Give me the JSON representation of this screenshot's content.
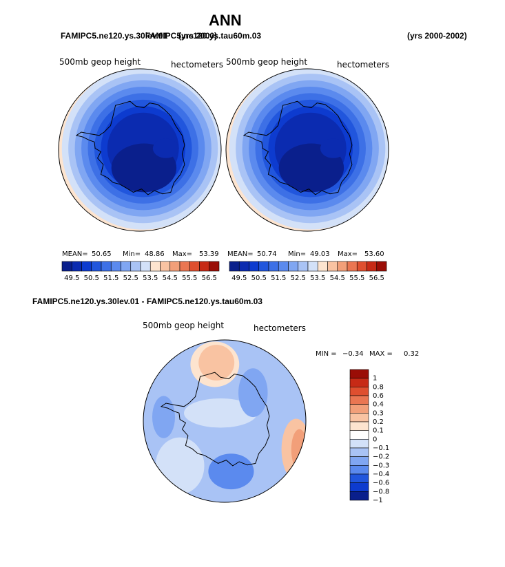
{
  "page": {
    "title": "ANN",
    "top_left_label": "FAMIPC5.ne120.ys.30lev.01",
    "top_overlap_label": "FAMIPC5.ne120.ys.tau60m.03",
    "top_overlap_years": "(yrs 2000)",
    "top_right_years": "(yrs 2000-2002)",
    "diff_header": "FAMIPC5.ne120.ys.30lev.01 - FAMIPC5.ne120.ys.tau60m.03"
  },
  "chart_data": [
    {
      "type": "heatmap",
      "title": "500mb geop height",
      "units": "hectometers",
      "projection": "south polar stereographic",
      "stats": {
        "mean_label": "MEAN=",
        "mean": "50.65",
        "min_label": "Min=",
        "min": "48.86",
        "max_label": "Max=",
        "max": "53.39"
      },
      "colorbar_ticks": [
        "49.5",
        "50.5",
        "51.5",
        "52.5",
        "53.5",
        "54.5",
        "55.5",
        "56.5"
      ],
      "levels": [
        49.0,
        49.5,
        50.0,
        50.5,
        51.0,
        51.5,
        52.0,
        52.5,
        53.0,
        53.5,
        54.0,
        54.5,
        55.0,
        55.5,
        56.0,
        56.5
      ],
      "colors": [
        "#0a1f8c",
        "#0b2bb0",
        "#0d3bcf",
        "#2156dd",
        "#3d70e6",
        "#5b8aee",
        "#80a6f2",
        "#a9c3f5",
        "#d3e1f8",
        "#fde4cf",
        "#f9c3a2",
        "#f29f79",
        "#ea7652",
        "#df4f2f",
        "#c72a16",
        "#9a0d06"
      ]
    },
    {
      "type": "heatmap",
      "title": "500mb geop height",
      "units": "hectometers",
      "projection": "south polar stereographic",
      "stats": {
        "mean_label": "MEAN=",
        "mean": "50.74",
        "min_label": "Min=",
        "min": "49.03",
        "max_label": "Max=",
        "max": "53.60"
      },
      "colorbar_ticks": [
        "49.5",
        "50.5",
        "51.5",
        "52.5",
        "53.5",
        "54.5",
        "55.5",
        "56.5"
      ]
    },
    {
      "type": "heatmap",
      "title": "500mb geop height",
      "units": "hectometers",
      "projection": "south polar stereographic",
      "stats": {
        "min_label": "MIN =",
        "min": "−0.34",
        "max_label": "MAX =",
        "max": "0.32"
      },
      "colorbar_ticks": [
        "1",
        "0.8",
        "0.6",
        "0.4",
        "0.3",
        "0.2",
        "0.1",
        "0",
        "−0.1",
        "−0.2",
        "−0.3",
        "−0.4",
        "−0.6",
        "−0.8",
        "−1"
      ],
      "colors": [
        "#9a0d06",
        "#c72a16",
        "#df4f2f",
        "#ea7652",
        "#f29f79",
        "#f9c3a2",
        "#fde4cf",
        "#ffffff",
        "#d3e1f8",
        "#a9c3f5",
        "#80a6f2",
        "#5b8aee",
        "#2156dd",
        "#0d3bcf",
        "#0a1f8c"
      ]
    }
  ]
}
